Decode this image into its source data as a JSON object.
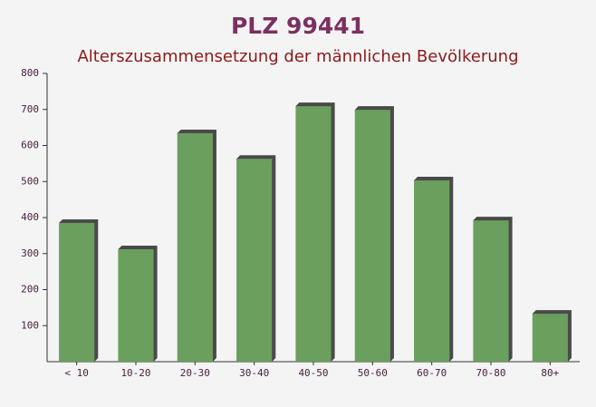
{
  "chart_data": {
    "type": "bar",
    "title": "PLZ 99441",
    "subtitle": "Alterszusammensetzung der männlichen Bevölkerung",
    "categories": [
      "< 10",
      "10-20",
      "20-30",
      "30-40",
      "40-50",
      "50-60",
      "60-70",
      "70-80",
      "80+"
    ],
    "values": [
      385,
      312,
      634,
      563,
      709,
      699,
      503,
      392,
      133
    ],
    "color": "#6a9f5e",
    "ylim": [
      0,
      800
    ],
    "yticks": [
      100,
      200,
      300,
      400,
      500,
      600,
      700,
      800
    ],
    "grid": false
  }
}
